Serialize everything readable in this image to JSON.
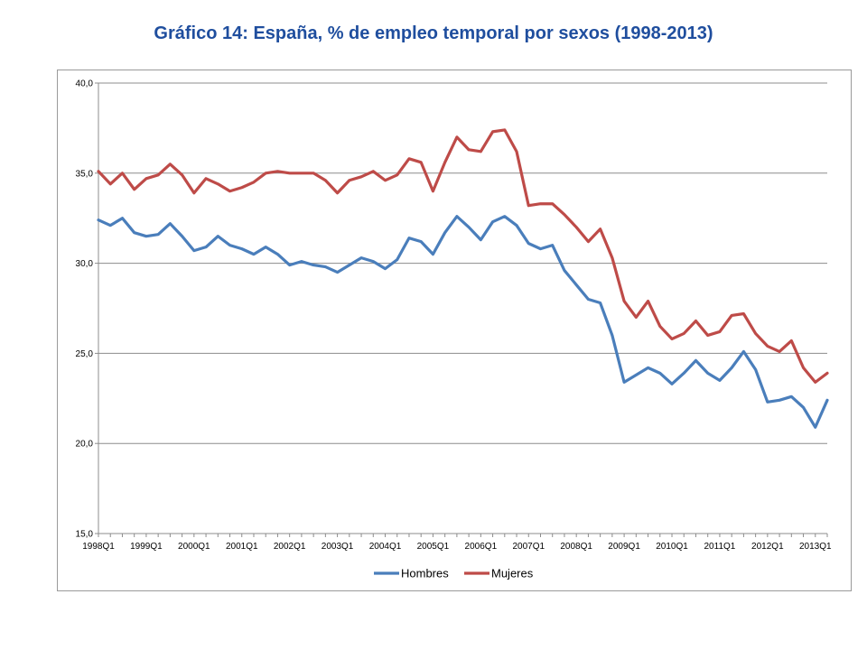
{
  "title": "Gráfico 14: España, % de empleo temporal por sexos (1998-2013)",
  "chart_data": {
    "type": "line",
    "title": "Gráfico 14: España, % de empleo temporal por sexos (1998-2013)",
    "xlabel": "",
    "ylabel": "",
    "ylim": [
      15,
      40
    ],
    "y_ticks": [
      "15,0",
      "20,0",
      "25,0",
      "30,0",
      "35,0",
      "40,0"
    ],
    "y_tick_values": [
      15,
      20,
      25,
      30,
      35,
      40
    ],
    "grid": "horizontal",
    "legend_position": "bottom",
    "x_tick_labels": [
      "1998Q1",
      "1999Q1",
      "2000Q1",
      "2001Q1",
      "2002Q1",
      "2003Q1",
      "2004Q1",
      "2005Q1",
      "2006Q1",
      "2007Q1",
      "2008Q1",
      "2009Q1",
      "2010Q1",
      "2011Q1",
      "2012Q1",
      "2013Q1"
    ],
    "x": [
      "1998Q1",
      "1998Q2",
      "1998Q3",
      "1998Q4",
      "1999Q1",
      "1999Q2",
      "1999Q3",
      "1999Q4",
      "2000Q1",
      "2000Q2",
      "2000Q3",
      "2000Q4",
      "2001Q1",
      "2001Q2",
      "2001Q3",
      "2001Q4",
      "2002Q1",
      "2002Q2",
      "2002Q3",
      "2002Q4",
      "2003Q1",
      "2003Q2",
      "2003Q3",
      "2003Q4",
      "2004Q1",
      "2004Q2",
      "2004Q3",
      "2004Q4",
      "2005Q1",
      "2005Q2",
      "2005Q3",
      "2005Q4",
      "2006Q1",
      "2006Q2",
      "2006Q3",
      "2006Q4",
      "2007Q1",
      "2007Q2",
      "2007Q3",
      "2007Q4",
      "2008Q1",
      "2008Q2",
      "2008Q3",
      "2008Q4",
      "2009Q1",
      "2009Q2",
      "2009Q3",
      "2009Q4",
      "2010Q1",
      "2010Q2",
      "2010Q3",
      "2010Q4",
      "2011Q1",
      "2011Q2",
      "2011Q3",
      "2011Q4",
      "2012Q1",
      "2012Q2",
      "2012Q3",
      "2012Q4",
      "2013Q1",
      "2013Q2"
    ],
    "series": [
      {
        "name": "Hombres",
        "color": "#4a7ebb",
        "values": [
          32.4,
          32.1,
          32.5,
          31.7,
          31.5,
          31.6,
          32.2,
          31.5,
          30.7,
          30.9,
          31.5,
          31.0,
          30.8,
          30.5,
          30.9,
          30.5,
          29.9,
          30.1,
          29.9,
          29.8,
          29.5,
          29.9,
          30.3,
          30.1,
          29.7,
          30.2,
          31.4,
          31.2,
          30.5,
          31.7,
          32.6,
          32.0,
          31.3,
          32.3,
          32.6,
          32.1,
          31.1,
          30.8,
          31.0,
          29.6,
          28.8,
          28.0,
          27.8,
          26.0,
          23.4,
          23.8,
          24.2,
          23.9,
          23.3,
          23.9,
          24.6,
          23.9,
          23.5,
          24.2,
          25.1,
          24.1,
          22.3,
          22.4,
          22.6,
          22.0,
          20.9,
          22.4
        ]
      },
      {
        "name": "Mujeres",
        "color": "#be4b48",
        "values": [
          35.1,
          34.4,
          35.0,
          34.1,
          34.7,
          34.9,
          35.5,
          34.9,
          33.9,
          34.7,
          34.4,
          34.0,
          34.2,
          34.5,
          35.0,
          35.1,
          35.0,
          35.0,
          35.0,
          34.6,
          33.9,
          34.6,
          34.8,
          35.1,
          34.6,
          34.9,
          35.8,
          35.6,
          34.0,
          35.6,
          37.0,
          36.3,
          36.2,
          37.3,
          37.4,
          36.2,
          33.2,
          33.3,
          33.3,
          32.7,
          32.0,
          31.2,
          31.9,
          30.3,
          27.9,
          27.0,
          27.9,
          26.5,
          25.8,
          26.1,
          26.8,
          26.0,
          26.2,
          27.1,
          27.2,
          26.1,
          25.4,
          25.1,
          25.7,
          24.2,
          23.4,
          23.9
        ]
      }
    ]
  }
}
